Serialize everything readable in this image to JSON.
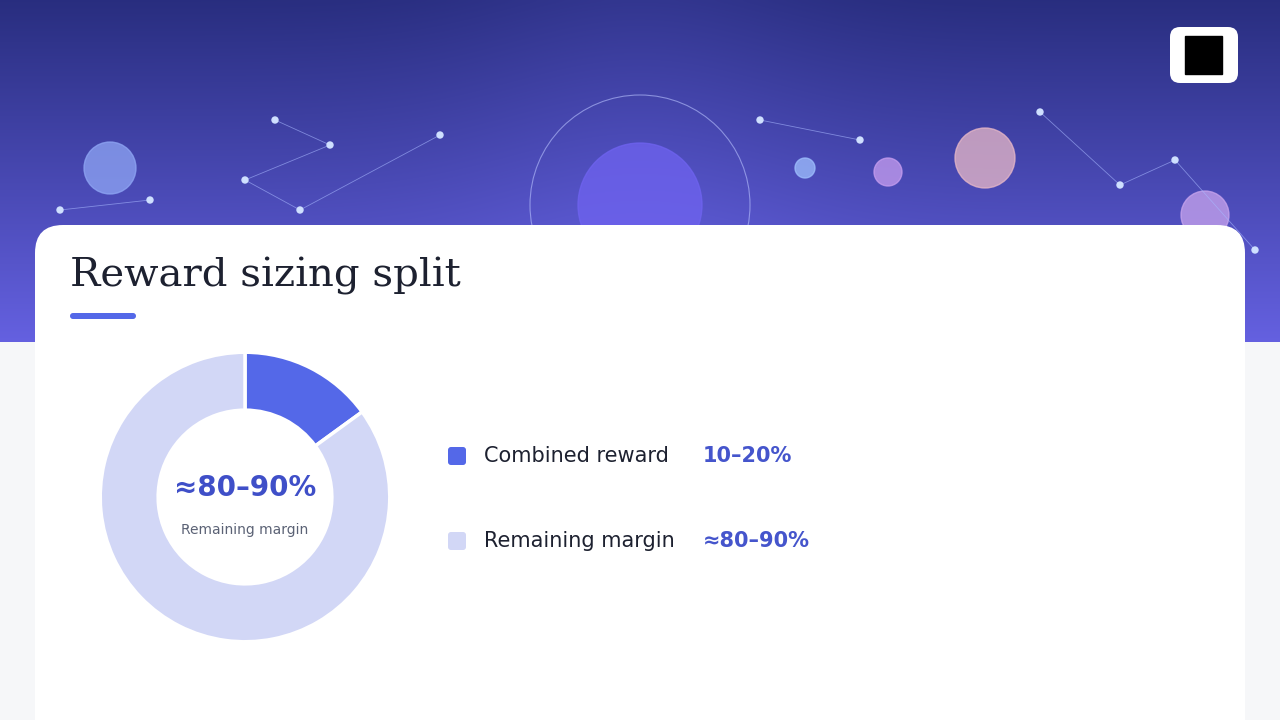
{
  "chart_data": {
    "type": "pie",
    "title": "Reward sizing split",
    "categories": [
      "Combined reward",
      "Remaining margin"
    ],
    "values": [
      15,
      85
    ],
    "value_labels": [
      "10–20%",
      "≈80–90%"
    ],
    "colors": [
      "#5468e8",
      "#d2d7f6"
    ],
    "annotations": [
      "≈80–90%",
      "Remaining margin"
    ],
    "legend": "right",
    "data_labels": false
  }
}
